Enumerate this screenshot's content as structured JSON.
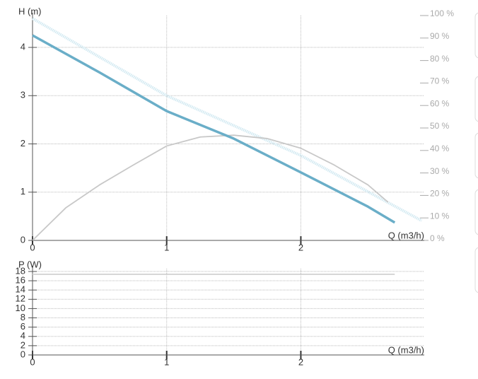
{
  "chart_data": [
    {
      "type": "line",
      "y_label": "H (m)",
      "x_label": "Q (m3/h)",
      "xlim": [
        0,
        2.92
      ],
      "xticks": [
        0,
        1,
        2
      ],
      "ylim": [
        0,
        4.66
      ],
      "yticks": [
        0,
        1,
        2,
        3,
        4
      ],
      "y2lim": [
        0,
        100
      ],
      "y2ticks": [
        {
          "value": 0,
          "label": "0 %"
        },
        {
          "value": 10,
          "label": "10 %"
        },
        {
          "value": 20,
          "label": "20 %"
        },
        {
          "value": 30,
          "label": "30 %"
        },
        {
          "value": 40,
          "label": "40 %"
        },
        {
          "value": 50,
          "label": "50 %"
        },
        {
          "value": 60,
          "label": "60 %"
        },
        {
          "value": 70,
          "label": "70 %"
        },
        {
          "value": 80,
          "label": "80 %"
        },
        {
          "value": 90,
          "label": "90 %"
        },
        {
          "value": 100,
          "label": "100 %"
        }
      ],
      "grid": true,
      "series": [
        {
          "color": "#d3eaf2",
          "line": "dotted",
          "x": [
            0,
            1,
            2,
            2.9
          ],
          "values": [
            4.6,
            3.0,
            1.76,
            0.41
          ]
        },
        {
          "color": "#c8c8c8",
          "line": "thin",
          "axis": "y2",
          "x": [
            0,
            0.25,
            0.5,
            0.75,
            1,
            1.25,
            1.5,
            1.75,
            2,
            2.25,
            2.5,
            2.65
          ],
          "values": [
            0,
            14.6,
            24.7,
            33.5,
            42,
            46,
            46.8,
            45.3,
            41,
            33.5,
            24.7,
            17
          ]
        },
        {
          "color": "#6aaec8",
          "line": "thick",
          "x": [
            0,
            0.5,
            1,
            1.5,
            2,
            2.5,
            2.7
          ],
          "values": [
            4.25,
            3.48,
            2.68,
            2.11,
            1.41,
            0.7,
            0.37
          ]
        }
      ]
    },
    {
      "type": "line",
      "y_label": "P (W)",
      "x_label": "Q (m3/h)",
      "xlim": [
        0,
        2.92
      ],
      "xticks": [
        0,
        1,
        2
      ],
      "ylim": [
        0,
        18.6
      ],
      "yticks": [
        0,
        2,
        4,
        6,
        8,
        10,
        12,
        14,
        16,
        18
      ],
      "grid": true,
      "series": [
        {
          "color": "#d0d0d0",
          "line": "thin",
          "x": [
            0,
            2.7
          ],
          "values": [
            17.4,
            17.4
          ]
        }
      ]
    }
  ]
}
